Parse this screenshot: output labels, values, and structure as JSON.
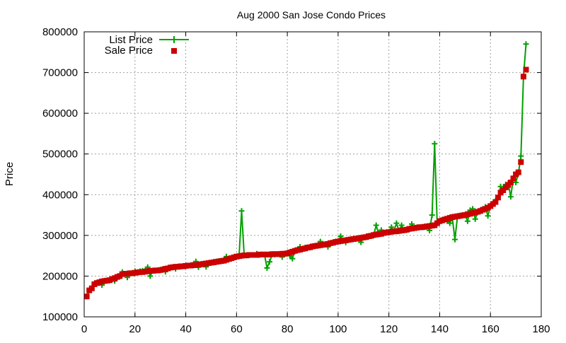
{
  "chart_data": {
    "type": "line",
    "title": "Aug 2000 San Jose Condo Prices",
    "xlabel": "",
    "ylabel": "Price",
    "xlim": [
      0,
      180
    ],
    "ylim": [
      100000,
      800000
    ],
    "xticks": [
      0,
      20,
      40,
      60,
      80,
      100,
      120,
      140,
      160,
      180
    ],
    "yticks": [
      100000,
      200000,
      300000,
      400000,
      500000,
      600000,
      700000,
      800000
    ],
    "grid": true,
    "legend_position": "top-left",
    "x": [
      1,
      2,
      3,
      4,
      5,
      6,
      7,
      8,
      9,
      10,
      11,
      12,
      13,
      14,
      15,
      16,
      17,
      18,
      19,
      20,
      21,
      22,
      23,
      24,
      25,
      26,
      27,
      28,
      29,
      30,
      31,
      32,
      33,
      34,
      35,
      36,
      37,
      38,
      39,
      40,
      41,
      42,
      43,
      44,
      45,
      46,
      47,
      48,
      49,
      50,
      51,
      52,
      53,
      54,
      55,
      56,
      57,
      58,
      59,
      60,
      61,
      62,
      63,
      64,
      65,
      66,
      67,
      68,
      69,
      70,
      71,
      72,
      73,
      74,
      75,
      76,
      77,
      78,
      79,
      80,
      81,
      82,
      83,
      84,
      85,
      86,
      87,
      88,
      89,
      90,
      91,
      92,
      93,
      94,
      95,
      96,
      97,
      98,
      99,
      100,
      101,
      102,
      103,
      104,
      105,
      106,
      107,
      108,
      109,
      110,
      111,
      112,
      113,
      114,
      115,
      116,
      117,
      118,
      119,
      120,
      121,
      122,
      123,
      124,
      125,
      126,
      127,
      128,
      129,
      130,
      131,
      132,
      133,
      134,
      135,
      136,
      137,
      138,
      139,
      140,
      141,
      142,
      143,
      144,
      145,
      146,
      147,
      148,
      149,
      150,
      151,
      152,
      153,
      154,
      155,
      156,
      157,
      158,
      159,
      160,
      161,
      162,
      163,
      164,
      165,
      166,
      167,
      168,
      169,
      170,
      171,
      172,
      173,
      174
    ],
    "series": [
      {
        "name": "List Price",
        "style": "linespoints",
        "marker": "plus",
        "color": "#00a000",
        "values": [
          150000,
          165000,
          170000,
          180000,
          183000,
          185000,
          178000,
          188000,
          189000,
          190000,
          193000,
          188000,
          197000,
          200000,
          210000,
          206000,
          197000,
          207000,
          208000,
          212000,
          209000,
          212000,
          213000,
          213000,
          222000,
          200000,
          213000,
          213000,
          214000,
          215000,
          217000,
          211000,
          219000,
          221000,
          222000,
          218000,
          223000,
          224000,
          225000,
          226000,
          226000,
          227000,
          228000,
          236000,
          222000,
          230000,
          231000,
          223000,
          232000,
          233000,
          235000,
          236000,
          237000,
          238000,
          239000,
          248000,
          242000,
          244000,
          246000,
          248000,
          249000,
          360000,
          252000,
          251000,
          252000,
          252000,
          252000,
          255000,
          252000,
          253000,
          253000,
          220000,
          235000,
          253000,
          253000,
          254000,
          254000,
          247000,
          255000,
          256000,
          250000,
          243000,
          262000,
          264000,
          272000,
          266000,
          270000,
          271000,
          272000,
          273000,
          274000,
          275000,
          285000,
          277000,
          278000,
          272000,
          280000,
          282000,
          285000,
          285000,
          298000,
          287000,
          283000,
          289000,
          290000,
          291000,
          291000,
          292000,
          283000,
          295000,
          296000,
          297000,
          298000,
          300000,
          325000,
          303000,
          313000,
          306000,
          308000,
          308000,
          320000,
          310000,
          330000,
          311000,
          325000,
          312000,
          313000,
          315000,
          328000,
          318000,
          319000,
          320000,
          321000,
          322000,
          322000,
          312000,
          350000,
          525000,
          330000,
          335000,
          338000,
          340000,
          335000,
          330000,
          342000,
          290000,
          347000,
          348000,
          350000,
          350000,
          335000,
          362000,
          365000,
          340000,
          358000,
          360000,
          365000,
          370000,
          348000,
          372000,
          378000,
          385000,
          393000,
          420000,
          410000,
          425000,
          428000,
          395000,
          440000,
          430000,
          452000,
          495000,
          690000,
          770000
        ]
      },
      {
        "name": "Sale Price",
        "style": "points",
        "marker": "filled-square",
        "color": "#cc0000",
        "values": [
          150000,
          165000,
          170000,
          180000,
          183000,
          185000,
          187000,
          188000,
          189000,
          190000,
          193000,
          195000,
          198000,
          200000,
          205000,
          206000,
          206000,
          207000,
          207000,
          208000,
          209000,
          210000,
          210000,
          211000,
          212000,
          213000,
          213000,
          214000,
          214000,
          215000,
          216000,
          218000,
          219000,
          221000,
          222000,
          223000,
          223000,
          224000,
          224000,
          225000,
          226000,
          226000,
          227000,
          227000,
          228000,
          229000,
          230000,
          231000,
          232000,
          233000,
          234000,
          235000,
          236000,
          237000,
          238000,
          240000,
          242000,
          244000,
          246000,
          248000,
          249000,
          250000,
          251000,
          251000,
          252000,
          252000,
          252000,
          252000,
          253000,
          253000,
          253000,
          253000,
          253000,
          254000,
          254000,
          254000,
          254000,
          255000,
          255000,
          256000,
          258000,
          260000,
          262000,
          264000,
          265000,
          267000,
          268000,
          270000,
          271000,
          273000,
          274000,
          275000,
          276000,
          277000,
          278000,
          279000,
          281000,
          282000,
          284000,
          285000,
          286000,
          287000,
          288000,
          289000,
          290000,
          291000,
          292000,
          293000,
          294000,
          295000,
          296000,
          298000,
          299000,
          301000,
          302000,
          303000,
          304000,
          306000,
          307000,
          308000,
          309000,
          310000,
          310000,
          311000,
          312000,
          313000,
          314000,
          316000,
          317000,
          318000,
          319000,
          320000,
          320000,
          321000,
          322000,
          323000,
          324000,
          325000,
          330000,
          335000,
          337000,
          339000,
          341000,
          343000,
          345000,
          346000,
          347000,
          348000,
          349000,
          350000,
          352000,
          353000,
          355000,
          356000,
          358000,
          360000,
          363000,
          365000,
          368000,
          372000,
          377000,
          382000,
          393000,
          405000,
          411000,
          418000,
          424000,
          430000,
          440000,
          450000,
          455000,
          480000,
          690000,
          707000
        ]
      }
    ]
  },
  "legend": {
    "items": [
      {
        "label": "List Price",
        "color": "#00a000"
      },
      {
        "label": "Sale Price",
        "color": "#cc0000"
      }
    ]
  }
}
